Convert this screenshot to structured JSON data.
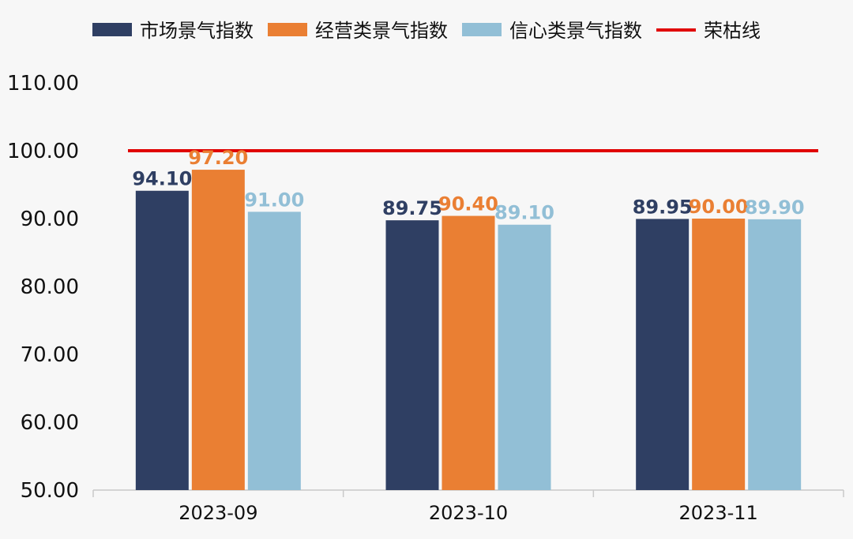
{
  "chart_data": {
    "type": "bar",
    "title": "",
    "xlabel": "",
    "ylabel": "",
    "ylim": [
      50,
      110
    ],
    "yticks": [
      "50.00",
      "60.00",
      "70.00",
      "80.00",
      "90.00",
      "100.00",
      "110.00"
    ],
    "categories": [
      "2023-09",
      "2023-10",
      "2023-11"
    ],
    "series": [
      {
        "name": "市场景气指数",
        "color": "#2f3f63",
        "values": [
          94.1,
          89.75,
          89.95
        ],
        "labels": [
          "94.10",
          "89.75",
          "89.95"
        ]
      },
      {
        "name": "经营类景气指数",
        "color": "#ea7f33",
        "values": [
          97.2,
          90.4,
          90.0
        ],
        "labels": [
          "97.20",
          "90.40",
          "90.00"
        ]
      },
      {
        "name": "信心类景气指数",
        "color": "#92bfd6",
        "values": [
          91.0,
          89.1,
          89.9
        ],
        "labels": [
          "91.00",
          "89.10",
          "89.90"
        ]
      }
    ],
    "reference_line": {
      "name": "荣枯线",
      "value": 100,
      "color": "#e00000"
    },
    "legend_position": "top-center",
    "grid": false
  }
}
